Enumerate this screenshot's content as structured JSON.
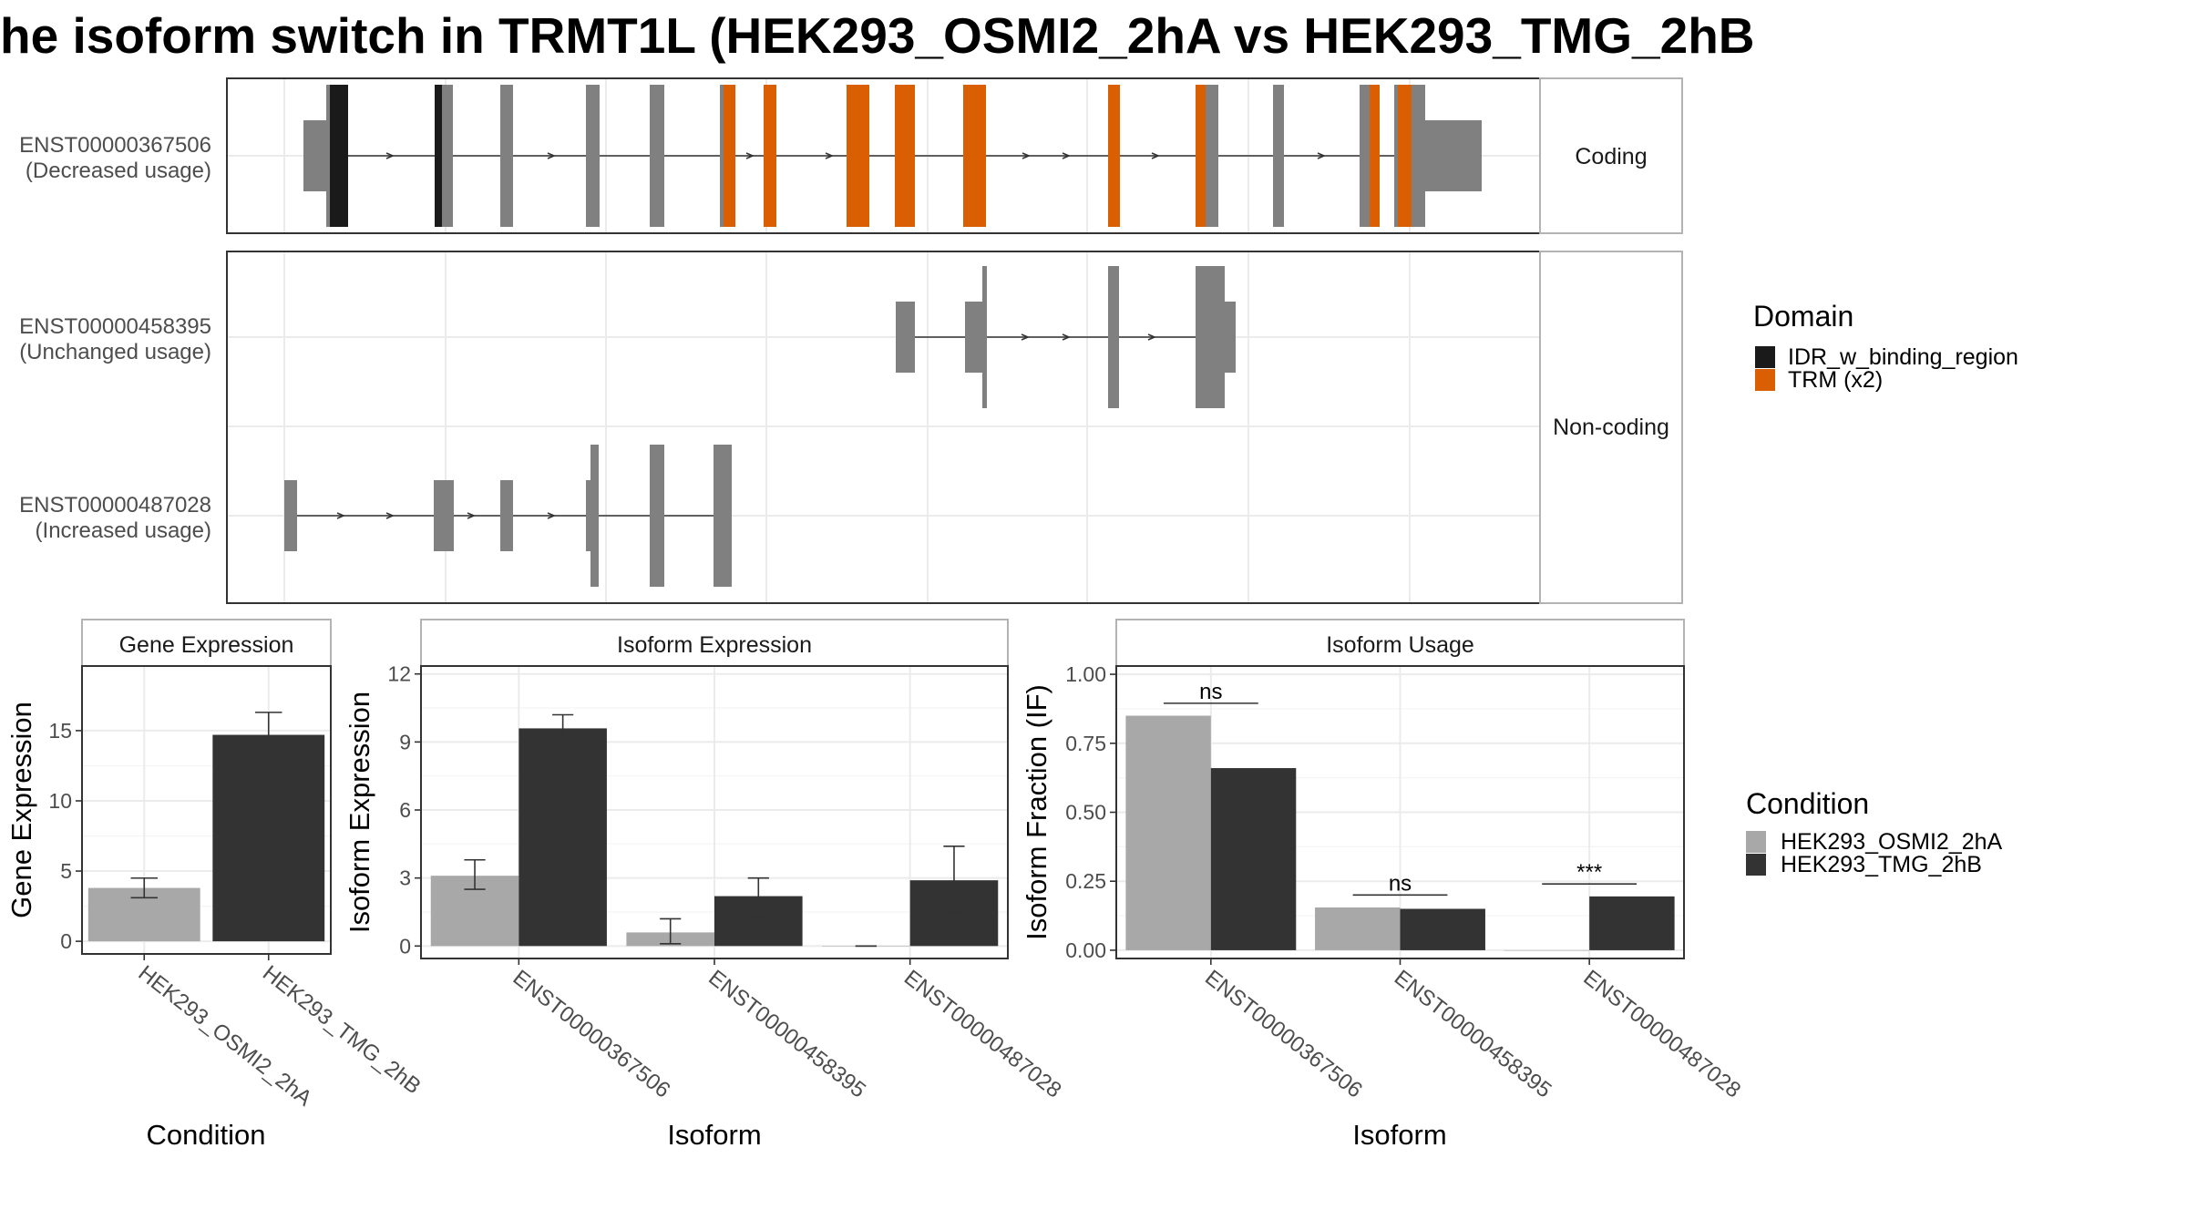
{
  "title": "he isoform switch in TRMT1L (HEK293_OSMI2_2hA vs HEK293_TMG_2hB",
  "colors": {
    "idr": "#1a1a1a",
    "trm": "#d95f02",
    "exon": "#808080",
    "condition_a": "#a8a8a8",
    "condition_b": "#333333",
    "strip_bg": "#ffffff",
    "grid": "#ebebeb"
  },
  "structure": {
    "facets": {
      "coding": "Coding",
      "noncoding": "Non-coding"
    },
    "transcripts": [
      {
        "id": "ENST00000367506",
        "usage": "(Decreased usage)"
      },
      {
        "id": "ENST00000458395",
        "usage": "(Unchanged usage)"
      },
      {
        "id": "ENST00000487028",
        "usage": "(Increased usage)"
      }
    ],
    "domain_legend": {
      "title": "Domain",
      "items": [
        {
          "label": "IDR_w_binding_region",
          "color": "#1a1a1a"
        },
        {
          "label": "TRM (x2)",
          "color": "#d95f02"
        }
      ]
    }
  },
  "condition_legend": {
    "title": "Condition",
    "items": [
      {
        "label": "HEK293_OSMI2_2hA",
        "color": "#a8a8a8"
      },
      {
        "label": "HEK293_TMG_2hB",
        "color": "#333333"
      }
    ]
  },
  "chart_data": [
    {
      "type": "bar",
      "title": "Gene Expression",
      "xlabel": "Condition",
      "ylabel": "Gene Expression",
      "categories": [
        "HEK293_OSMI2_2hA",
        "HEK293_TMG_2hB"
      ],
      "values": [
        3.8,
        14.7
      ],
      "error_low": [
        3.1,
        13.1
      ],
      "error_high": [
        4.5,
        16.3
      ],
      "yticks": [
        0,
        5,
        10,
        15
      ],
      "ylim": [
        -0.9,
        19.6
      ]
    },
    {
      "type": "bar",
      "title": "Isoform Expression",
      "xlabel": "Isoform",
      "ylabel": "Isoform Expression",
      "categories": [
        "ENST00000367506",
        "ENST00000458395",
        "ENST00000487028"
      ],
      "series": [
        {
          "name": "HEK293_OSMI2_2hA",
          "values": [
            3.1,
            0.6,
            0.0
          ],
          "error_low": [
            2.5,
            0.1,
            0.0
          ],
          "error_high": [
            3.8,
            1.2,
            0.0
          ]
        },
        {
          "name": "HEK293_TMG_2hB",
          "values": [
            9.6,
            2.2,
            2.9
          ],
          "error_low": [
            9.0,
            1.3,
            1.5
          ],
          "error_high": [
            10.2,
            3.0,
            4.4
          ]
        }
      ],
      "yticks": [
        0,
        3,
        6,
        9,
        12
      ],
      "ylim": [
        -0.55,
        12.35
      ]
    },
    {
      "type": "bar",
      "title": "Isoform Usage",
      "xlabel": "Isoform",
      "ylabel": "Isoform Fraction (IF)",
      "categories": [
        "ENST00000367506",
        "ENST00000458395",
        "ENST00000487028"
      ],
      "series": [
        {
          "name": "HEK293_OSMI2_2hA",
          "values": [
            0.85,
            0.155,
            0.0
          ]
        },
        {
          "name": "HEK293_TMG_2hB",
          "values": [
            0.66,
            0.15,
            0.195
          ]
        }
      ],
      "significance": [
        "ns",
        "ns",
        "***"
      ],
      "yticks": [
        "0.00",
        "0.25",
        "0.50",
        "0.75",
        "1.00"
      ],
      "ylim": [
        -0.03,
        1.03
      ]
    }
  ]
}
